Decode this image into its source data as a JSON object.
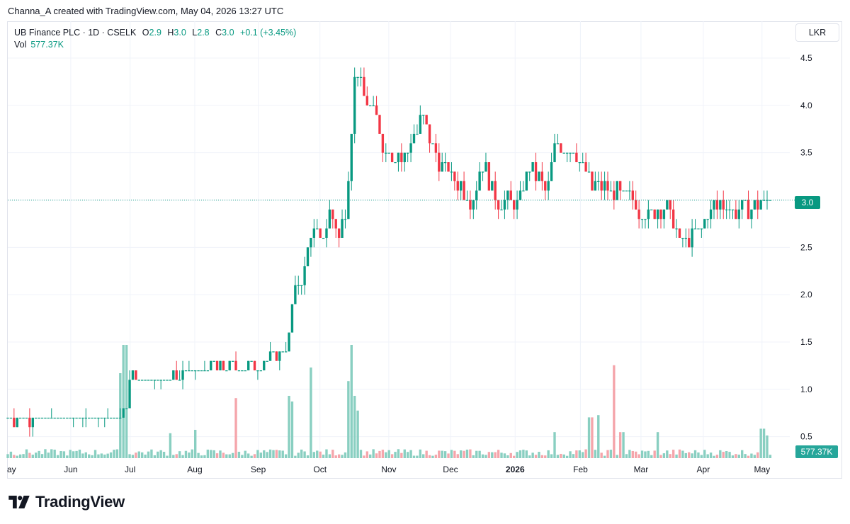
{
  "caption": "Channa_A created with TradingView.com, May 04, 2026 13:27 UTC",
  "legend": {
    "symbol": "UB Finance PLC · 1D · CSELK",
    "open_label": "O",
    "open": "2.9",
    "high_label": "H",
    "high": "3.0",
    "low_label": "L",
    "low": "2.8",
    "close_label": "C",
    "close": "3.0",
    "change": "+0.1 (+3.45%)",
    "vol_label": "Vol",
    "vol_value": "577.37K"
  },
  "currency_button": "LKR",
  "price_tag": "3.0",
  "volume_tag": "577.37K",
  "brand": "TradingView",
  "colors": {
    "up": "#089981",
    "down": "#f23645",
    "vol_up": "#89cfc1",
    "vol_down": "#f5a5ab",
    "grid": "#f0f3fa",
    "axis_text": "#131722"
  },
  "chart_data": {
    "type": "candlestick",
    "interval": "1D",
    "ylim": [
      0.25,
      4.65
    ],
    "y_ticks": [
      0.5,
      1.0,
      1.5,
      2.0,
      2.5,
      3.0,
      3.5,
      4.0,
      4.5
    ],
    "y_tick_labels": [
      "0.5",
      "1.0",
      "1.5",
      "2.0",
      "2.5",
      "3.0",
      "3.5",
      "4.0",
      "4.5"
    ],
    "last_price": 3.0,
    "x_ticks": [
      {
        "label": "ay",
        "pos": 0
      },
      {
        "label": "Jun",
        "pos": 0.0805
      },
      {
        "label": "Jul",
        "pos": 0.1564
      },
      {
        "label": "Aug",
        "pos": 0.2391
      },
      {
        "label": "Sep",
        "pos": 0.3203
      },
      {
        "label": "Oct",
        "pos": 0.3992
      },
      {
        "label": "Nov",
        "pos": 0.4872
      },
      {
        "label": "Dec",
        "pos": 0.5661
      },
      {
        "label": "2026",
        "pos": 0.6488,
        "bold": true
      },
      {
        "label": "Feb",
        "pos": 0.7323
      },
      {
        "label": "Mar",
        "pos": 0.8097
      },
      {
        "label": "Apr",
        "pos": 0.8894
      },
      {
        "label": "May",
        "pos": 0.9645
      }
    ],
    "anchors": [
      {
        "t": 0,
        "p": 0.68
      },
      {
        "t": 0.143,
        "p": 0.7
      },
      {
        "t": 0.15,
        "p": 0.78
      },
      {
        "t": 0.158,
        "p": 1.2
      },
      {
        "t": 0.172,
        "p": 1.08
      },
      {
        "t": 0.205,
        "p": 1.12
      },
      {
        "t": 0.235,
        "p": 1.18
      },
      {
        "t": 0.262,
        "p": 1.25
      },
      {
        "t": 0.3,
        "p": 1.22
      },
      {
        "t": 0.335,
        "p": 1.32
      },
      {
        "t": 0.358,
        "p": 1.4
      },
      {
        "t": 0.365,
        "p": 2.0
      },
      {
        "t": 0.38,
        "p": 2.3
      },
      {
        "t": 0.388,
        "p": 2.7
      },
      {
        "t": 0.4,
        "p": 2.55
      },
      {
        "t": 0.412,
        "p": 2.85
      },
      {
        "t": 0.425,
        "p": 2.6
      },
      {
        "t": 0.433,
        "p": 3.0
      },
      {
        "t": 0.438,
        "p": 3.62
      },
      {
        "t": 0.445,
        "p": 4.42
      },
      {
        "t": 0.456,
        "p": 4.05
      },
      {
        "t": 0.468,
        "p": 3.95
      },
      {
        "t": 0.482,
        "p": 3.55
      },
      {
        "t": 0.505,
        "p": 3.45
      },
      {
        "t": 0.53,
        "p": 3.85
      },
      {
        "t": 0.548,
        "p": 3.45
      },
      {
        "t": 0.575,
        "p": 3.2
      },
      {
        "t": 0.592,
        "p": 2.98
      },
      {
        "t": 0.608,
        "p": 3.4
      },
      {
        "t": 0.625,
        "p": 3.0
      },
      {
        "t": 0.65,
        "p": 2.95
      },
      {
        "t": 0.67,
        "p": 3.35
      },
      {
        "t": 0.69,
        "p": 3.05
      },
      {
        "t": 0.7,
        "p": 3.62
      },
      {
        "t": 0.725,
        "p": 3.55
      },
      {
        "t": 0.745,
        "p": 3.15
      },
      {
        "t": 0.77,
        "p": 3.1
      },
      {
        "t": 0.795,
        "p": 3.0
      },
      {
        "t": 0.815,
        "p": 2.85
      },
      {
        "t": 0.842,
        "p": 2.95
      },
      {
        "t": 0.86,
        "p": 2.55
      },
      {
        "t": 0.885,
        "p": 2.7
      },
      {
        "t": 0.905,
        "p": 2.95
      },
      {
        "t": 0.935,
        "p": 2.9
      },
      {
        "t": 0.96,
        "p": 2.95
      },
      {
        "t": 0.975,
        "p": 3.0
      }
    ],
    "volume_spikes": [
      {
        "t": 0.145,
        "v": 0.75
      },
      {
        "t": 0.15,
        "v": 1.0
      },
      {
        "t": 0.208,
        "v": 0.22
      },
      {
        "t": 0.24,
        "v": 0.25
      },
      {
        "t": 0.293,
        "v": 0.53
      },
      {
        "t": 0.36,
        "v": 0.55
      },
      {
        "t": 0.365,
        "v": 0.5
      },
      {
        "t": 0.388,
        "v": 0.8
      },
      {
        "t": 0.435,
        "v": 0.68
      },
      {
        "t": 0.44,
        "v": 1.0
      },
      {
        "t": 0.445,
        "v": 0.55
      },
      {
        "t": 0.448,
        "v": 0.42
      },
      {
        "t": 0.7,
        "v": 0.23
      },
      {
        "t": 0.745,
        "v": 0.36
      },
      {
        "t": 0.755,
        "v": 0.38
      },
      {
        "t": 0.775,
        "v": 0.82
      },
      {
        "t": 0.785,
        "v": 0.23
      },
      {
        "t": 0.83,
        "v": 0.23
      },
      {
        "t": 0.965,
        "v": 0.26
      },
      {
        "t": 0.97,
        "v": 0.2
      }
    ]
  }
}
